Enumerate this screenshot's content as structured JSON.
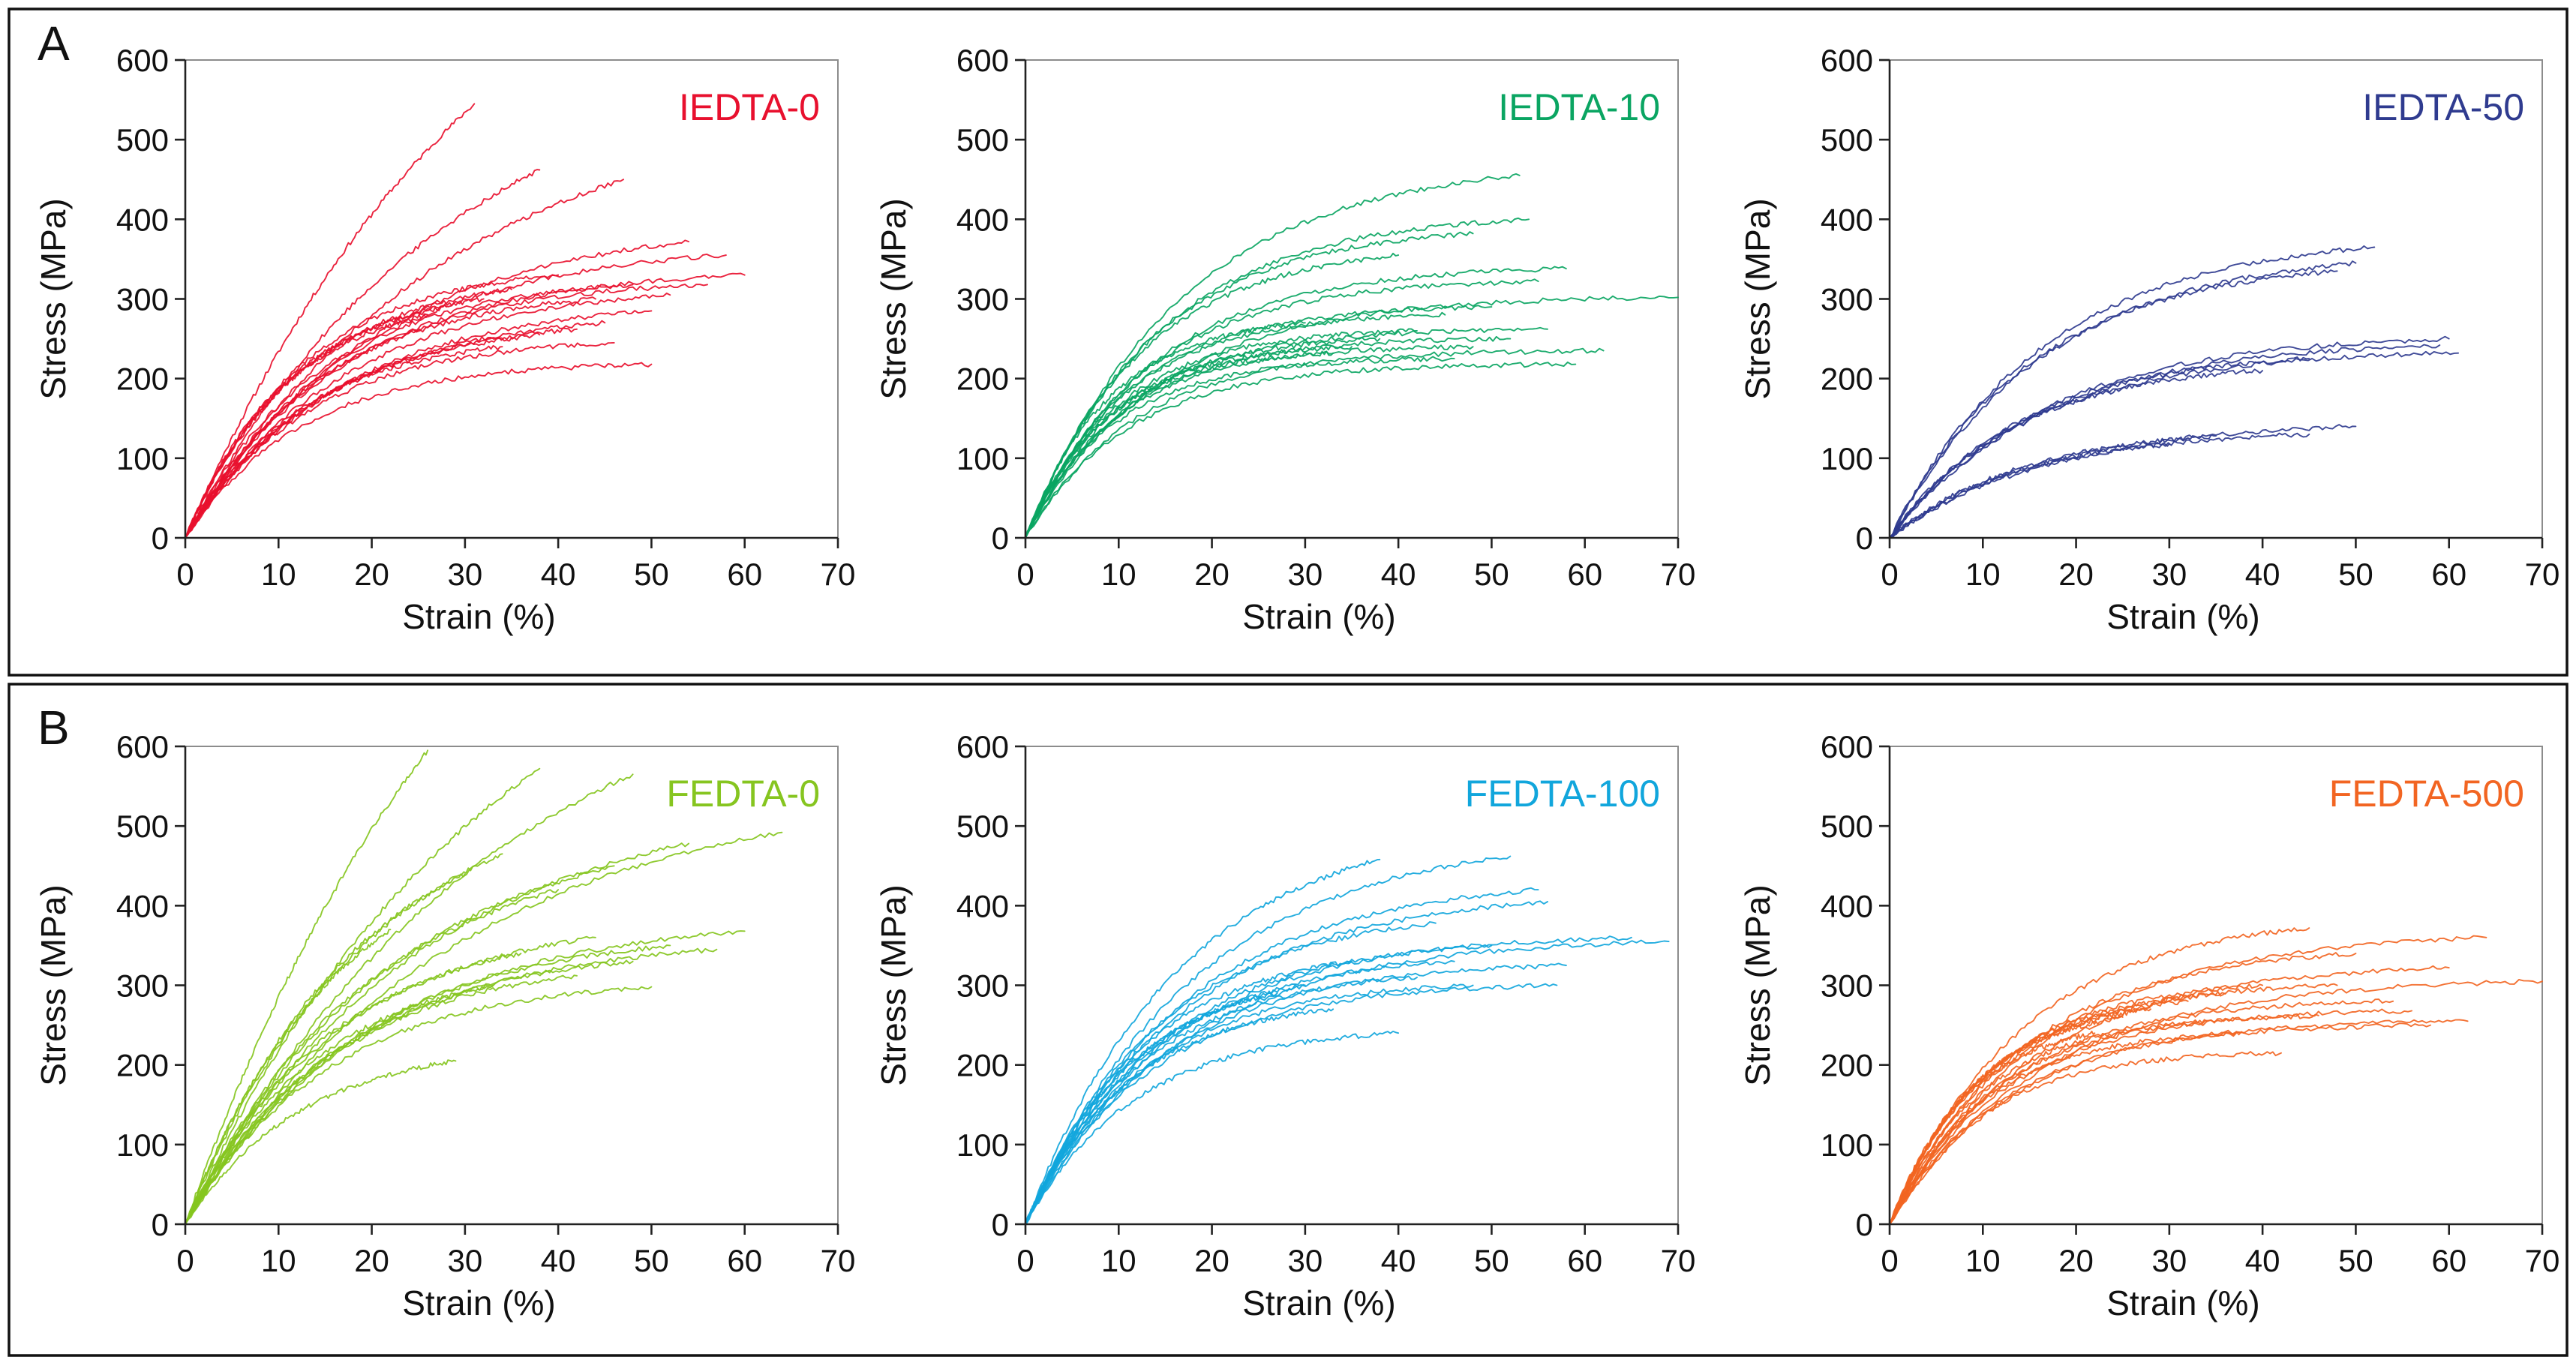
{
  "figure": {
    "panels": [
      {
        "letter": "A",
        "label": "panel-A"
      },
      {
        "letter": "B",
        "label": "panel-B"
      }
    ]
  },
  "chart_data": [
    {
      "type": "line",
      "group": "A",
      "title": "IEDTA-0",
      "legend_position": "top-right",
      "color": "#e8102e",
      "xlabel": "Strain (%)",
      "ylabel": "Stress (MPa)",
      "xlim": [
        0,
        70
      ],
      "ylim": [
        0,
        600
      ],
      "xticks": [
        0,
        10,
        20,
        30,
        40,
        50,
        60,
        70
      ],
      "yticks": [
        0,
        100,
        200,
        300,
        400,
        500,
        600
      ],
      "series": [
        {
          "end": [
            31,
            545
          ],
          "k": 0.03
        },
        {
          "end": [
            38,
            462
          ],
          "k": 0.035
        },
        {
          "end": [
            47,
            450
          ],
          "k": 0.035
        },
        {
          "end": [
            54,
            372
          ],
          "k": 0.05
        },
        {
          "end": [
            58,
            355
          ],
          "k": 0.055
        },
        {
          "end": [
            60,
            330
          ],
          "k": 0.06
        },
        {
          "end": [
            56,
            318
          ],
          "k": 0.065
        },
        {
          "end": [
            52,
            305
          ],
          "k": 0.06
        },
        {
          "end": [
            48,
            318
          ],
          "k": 0.07
        },
        {
          "end": [
            44,
            300
          ],
          "k": 0.07
        },
        {
          "end": [
            40,
            330
          ],
          "k": 0.08
        },
        {
          "end": [
            35,
            312
          ],
          "k": 0.08
        },
        {
          "end": [
            32,
            300
          ],
          "k": 0.085
        },
        {
          "end": [
            28,
            290
          ],
          "k": 0.09
        },
        {
          "end": [
            50,
            285
          ],
          "k": 0.06
        },
        {
          "end": [
            45,
            270
          ],
          "k": 0.065
        },
        {
          "end": [
            42,
            262
          ],
          "k": 0.07
        },
        {
          "end": [
            38,
            255
          ],
          "k": 0.07
        },
        {
          "end": [
            46,
            245
          ],
          "k": 0.075
        },
        {
          "end": [
            50,
            218
          ],
          "k": 0.08
        },
        {
          "end": [
            34,
            240
          ],
          "k": 0.08
        },
        {
          "end": [
            26,
            280
          ],
          "k": 0.09
        }
      ]
    },
    {
      "type": "line",
      "group": "A",
      "title": "IEDTA-10",
      "legend_position": "top-right",
      "color": "#0aa562",
      "xlabel": "Strain (%)",
      "ylabel": "Stress (MPa)",
      "xlim": [
        0,
        70
      ],
      "ylim": [
        0,
        600
      ],
      "xticks": [
        0,
        10,
        20,
        30,
        40,
        50,
        60,
        70
      ],
      "yticks": [
        0,
        100,
        200,
        300,
        400,
        500,
        600
      ],
      "series": [
        {
          "end": [
            53,
            455
          ],
          "k": 0.06
        },
        {
          "end": [
            54,
            400
          ],
          "k": 0.07
        },
        {
          "end": [
            48,
            382
          ],
          "k": 0.075
        },
        {
          "end": [
            40,
            355
          ],
          "k": 0.08
        },
        {
          "end": [
            58,
            338
          ],
          "k": 0.075
        },
        {
          "end": [
            70,
            302
          ],
          "k": 0.07
        },
        {
          "end": [
            62,
            235
          ],
          "k": 0.085
        },
        {
          "end": [
            59,
            218
          ],
          "k": 0.09
        },
        {
          "end": [
            55,
            322
          ],
          "k": 0.08
        },
        {
          "end": [
            50,
            290
          ],
          "k": 0.09
        },
        {
          "end": [
            45,
            280
          ],
          "k": 0.095
        },
        {
          "end": [
            42,
            260
          ],
          "k": 0.1
        },
        {
          "end": [
            38,
            250
          ],
          "k": 0.1
        },
        {
          "end": [
            52,
            250
          ],
          "k": 0.095
        },
        {
          "end": [
            35,
            240
          ],
          "k": 0.11
        },
        {
          "end": [
            30,
            270
          ],
          "k": 0.11
        },
        {
          "end": [
            48,
            240
          ],
          "k": 0.1
        },
        {
          "end": [
            46,
            225
          ],
          "k": 0.105
        },
        {
          "end": [
            33,
            232
          ],
          "k": 0.115
        },
        {
          "end": [
            56,
            262
          ],
          "k": 0.09
        }
      ]
    },
    {
      "type": "line",
      "group": "A",
      "title": "IEDTA-50",
      "legend_position": "top-right",
      "color": "#2f3b8f",
      "xlabel": "Strain (%)",
      "ylabel": "Stress (MPa)",
      "xlim": [
        0,
        70
      ],
      "ylim": [
        0,
        600
      ],
      "xticks": [
        0,
        10,
        20,
        30,
        40,
        50,
        60,
        70
      ],
      "yticks": [
        0,
        100,
        200,
        300,
        400,
        500,
        600
      ],
      "series": [
        {
          "end": [
            52,
            365
          ],
          "k": 0.06
        },
        {
          "end": [
            50,
            345
          ],
          "k": 0.06
        },
        {
          "end": [
            48,
            335
          ],
          "k": 0.065
        },
        {
          "end": [
            60,
            250
          ],
          "k": 0.06
        },
        {
          "end": [
            61,
            232
          ],
          "k": 0.065
        },
        {
          "end": [
            59,
            242
          ],
          "k": 0.06
        },
        {
          "end": [
            45,
            225
          ],
          "k": 0.07
        },
        {
          "end": [
            40,
            210
          ],
          "k": 0.075
        },
        {
          "end": [
            50,
            140
          ],
          "k": 0.06
        },
        {
          "end": [
            45,
            130
          ],
          "k": 0.065
        },
        {
          "end": [
            35,
            128
          ],
          "k": 0.07
        },
        {
          "end": [
            30,
            118
          ],
          "k": 0.075
        }
      ]
    },
    {
      "type": "line",
      "group": "B",
      "title": "FEDTA-0",
      "legend_position": "top-right",
      "color": "#86c520",
      "xlabel": "Strain (%)",
      "ylabel": "Stress (MPa)",
      "xlim": [
        0,
        70
      ],
      "ylim": [
        0,
        600
      ],
      "xticks": [
        0,
        10,
        20,
        30,
        40,
        50,
        60,
        70
      ],
      "yticks": [
        0,
        100,
        200,
        300,
        400,
        500,
        600
      ],
      "series": [
        {
          "end": [
            26,
            595
          ],
          "k": 0.03
        },
        {
          "end": [
            38,
            572
          ],
          "k": 0.03
        },
        {
          "end": [
            48,
            565
          ],
          "k": 0.03
        },
        {
          "end": [
            64,
            492
          ],
          "k": 0.035
        },
        {
          "end": [
            54,
            478
          ],
          "k": 0.04
        },
        {
          "end": [
            46,
            450
          ],
          "k": 0.045
        },
        {
          "end": [
            40,
            420
          ],
          "k": 0.05
        },
        {
          "end": [
            34,
            465
          ],
          "k": 0.05
        },
        {
          "end": [
            30,
            440
          ],
          "k": 0.055
        },
        {
          "end": [
            60,
            368
          ],
          "k": 0.05
        },
        {
          "end": [
            57,
            345
          ],
          "k": 0.055
        },
        {
          "end": [
            52,
            350
          ],
          "k": 0.055
        },
        {
          "end": [
            48,
            330
          ],
          "k": 0.06
        },
        {
          "end": [
            44,
            360
          ],
          "k": 0.06
        },
        {
          "end": [
            50,
            298
          ],
          "k": 0.065
        },
        {
          "end": [
            42,
            312
          ],
          "k": 0.065
        },
        {
          "end": [
            36,
            340
          ],
          "k": 0.065
        },
        {
          "end": [
            29,
            205
          ],
          "k": 0.08
        },
        {
          "end": [
            33,
            300
          ],
          "k": 0.07
        },
        {
          "end": [
            22,
            370
          ],
          "k": 0.06
        }
      ]
    },
    {
      "type": "line",
      "group": "B",
      "title": "FEDTA-100",
      "legend_position": "top-right",
      "color": "#11a6dc",
      "xlabel": "Strain (%)",
      "ylabel": "Stress (MPa)",
      "xlim": [
        0,
        70
      ],
      "ylim": [
        0,
        600
      ],
      "xticks": [
        0,
        10,
        20,
        30,
        40,
        50,
        60,
        70
      ],
      "yticks": [
        0,
        100,
        200,
        300,
        400,
        500,
        600
      ],
      "series": [
        {
          "end": [
            38,
            458
          ],
          "k": 0.06
        },
        {
          "end": [
            52,
            462
          ],
          "k": 0.055
        },
        {
          "end": [
            55,
            420
          ],
          "k": 0.06
        },
        {
          "end": [
            56,
            405
          ],
          "k": 0.06
        },
        {
          "end": [
            69,
            355
          ],
          "k": 0.06
        },
        {
          "end": [
            65,
            360
          ],
          "k": 0.065
        },
        {
          "end": [
            58,
            325
          ],
          "k": 0.07
        },
        {
          "end": [
            50,
            350
          ],
          "k": 0.07
        },
        {
          "end": [
            46,
            330
          ],
          "k": 0.075
        },
        {
          "end": [
            42,
            310
          ],
          "k": 0.08
        },
        {
          "end": [
            40,
            240
          ],
          "k": 0.085
        },
        {
          "end": [
            35,
            330
          ],
          "k": 0.08
        },
        {
          "end": [
            30,
            300
          ],
          "k": 0.085
        },
        {
          "end": [
            48,
            300
          ],
          "k": 0.08
        },
        {
          "end": [
            44,
            378
          ],
          "k": 0.07
        },
        {
          "end": [
            33,
            270
          ],
          "k": 0.09
        },
        {
          "end": [
            57,
            300
          ],
          "k": 0.075
        },
        {
          "end": [
            27,
            290
          ],
          "k": 0.09
        }
      ]
    },
    {
      "type": "line",
      "group": "B",
      "title": "FEDTA-500",
      "legend_position": "top-right",
      "color": "#f26522",
      "xlabel": "Strain (%)",
      "ylabel": "Stress (MPa)",
      "xlim": [
        0,
        70
      ],
      "ylim": [
        0,
        600
      ],
      "xticks": [
        0,
        10,
        20,
        30,
        40,
        50,
        60,
        70
      ],
      "yticks": [
        0,
        100,
        200,
        300,
        400,
        500,
        600
      ],
      "series": [
        {
          "end": [
            45,
            372
          ],
          "k": 0.07
        },
        {
          "end": [
            64,
            360
          ],
          "k": 0.06
        },
        {
          "end": [
            70,
            305
          ],
          "k": 0.06
        },
        {
          "end": [
            60,
            322
          ],
          "k": 0.065
        },
        {
          "end": [
            50,
            340
          ],
          "k": 0.07
        },
        {
          "end": [
            62,
            255
          ],
          "k": 0.075
        },
        {
          "end": [
            58,
            250
          ],
          "k": 0.08
        },
        {
          "end": [
            40,
            300
          ],
          "k": 0.09
        },
        {
          "end": [
            36,
            290
          ],
          "k": 0.095
        },
        {
          "end": [
            32,
            280
          ],
          "k": 0.1
        },
        {
          "end": [
            28,
            270
          ],
          "k": 0.105
        },
        {
          "end": [
            46,
            262
          ],
          "k": 0.09
        },
        {
          "end": [
            42,
            215
          ],
          "k": 0.1
        },
        {
          "end": [
            25,
            260
          ],
          "k": 0.11
        },
        {
          "end": [
            54,
            280
          ],
          "k": 0.08
        },
        {
          "end": [
            38,
            240
          ],
          "k": 0.1
        },
        {
          "end": [
            22,
            240
          ],
          "k": 0.12
        },
        {
          "end": [
            48,
            300
          ],
          "k": 0.085
        },
        {
          "end": [
            56,
            268
          ],
          "k": 0.08
        },
        {
          "end": [
            34,
            255
          ],
          "k": 0.1
        }
      ]
    }
  ]
}
